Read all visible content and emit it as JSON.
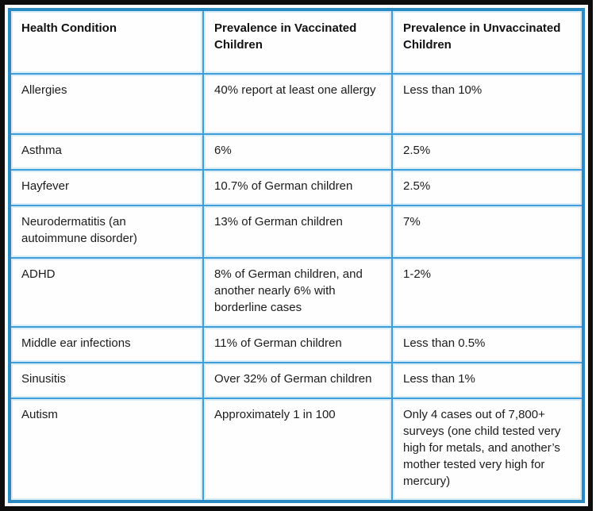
{
  "table": {
    "columns": [
      "Health Condition",
      "Prevalence in Vaccinated Children",
      "Prevalence in Unvaccinated Children"
    ],
    "rows": [
      {
        "condition": "Allergies",
        "vaccinated": "40% report at least one allergy",
        "unvaccinated": "Less than 10%"
      },
      {
        "condition": "Asthma",
        "vaccinated": "6%",
        "unvaccinated": "2.5%"
      },
      {
        "condition": "Hayfever",
        "vaccinated": "10.7% of German children",
        "unvaccinated": "2.5%"
      },
      {
        "condition": "Neurodermatitis (an autoimmune disorder)",
        "vaccinated": "13% of German children",
        "unvaccinated": "7%"
      },
      {
        "condition": "ADHD",
        "vaccinated": "8% of German children, and another nearly 6% with borderline cases",
        "unvaccinated": "1-2%"
      },
      {
        "condition": "Middle ear infections",
        "vaccinated": "11% of German children",
        "unvaccinated": "Less than 0.5%"
      },
      {
        "condition": "Sinusitis",
        "vaccinated": "Over 32% of German children",
        "unvaccinated": "Less than 1%"
      },
      {
        "condition": "Autism",
        "vaccinated": "Approximately 1 in 100",
        "unvaccinated": "Only 4 cases out of 7,800+ surveys (one child tested very high for metals, and another’s mother tested very high for mercury)"
      }
    ]
  },
  "colors": {
    "frame_black": "#0d0d0d",
    "table_border_blue": "#2a8ac3",
    "cell_border_blue": "#3f9ed8",
    "cell_halo_blue": "#d9edf8",
    "text": "#1b1b1b",
    "background": "#ffffff"
  }
}
